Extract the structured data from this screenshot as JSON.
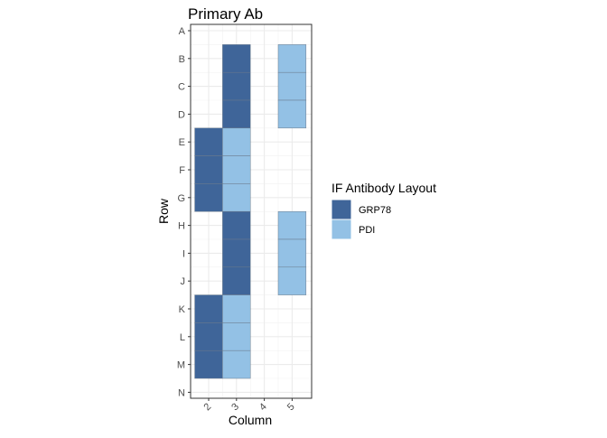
{
  "chart_data": {
    "type": "heatmap",
    "title": "Primary Ab",
    "xlabel": "Column",
    "ylabel": "Row",
    "columns": [
      "2",
      "3",
      "4",
      "5"
    ],
    "rows": [
      "A",
      "B",
      "C",
      "D",
      "E",
      "F",
      "G",
      "H",
      "I",
      "J",
      "K",
      "L",
      "M",
      "N"
    ],
    "legend": {
      "title": "IF Antibody Layout",
      "entries": [
        {
          "name": "GRP78",
          "color": "#3f6599"
        },
        {
          "name": "PDI",
          "color": "#93c1e5"
        }
      ]
    },
    "cells": [
      {
        "row": "B",
        "col": "3",
        "value": "GRP78"
      },
      {
        "row": "C",
        "col": "3",
        "value": "GRP78"
      },
      {
        "row": "D",
        "col": "3",
        "value": "GRP78"
      },
      {
        "row": "B",
        "col": "5",
        "value": "PDI"
      },
      {
        "row": "C",
        "col": "5",
        "value": "PDI"
      },
      {
        "row": "D",
        "col": "5",
        "value": "PDI"
      },
      {
        "row": "E",
        "col": "2",
        "value": "GRP78"
      },
      {
        "row": "F",
        "col": "2",
        "value": "GRP78"
      },
      {
        "row": "G",
        "col": "2",
        "value": "GRP78"
      },
      {
        "row": "E",
        "col": "3",
        "value": "PDI"
      },
      {
        "row": "F",
        "col": "3",
        "value": "PDI"
      },
      {
        "row": "G",
        "col": "3",
        "value": "PDI"
      },
      {
        "row": "H",
        "col": "3",
        "value": "GRP78"
      },
      {
        "row": "I",
        "col": "3",
        "value": "GRP78"
      },
      {
        "row": "J",
        "col": "3",
        "value": "GRP78"
      },
      {
        "row": "H",
        "col": "5",
        "value": "PDI"
      },
      {
        "row": "I",
        "col": "5",
        "value": "PDI"
      },
      {
        "row": "J",
        "col": "5",
        "value": "PDI"
      },
      {
        "row": "K",
        "col": "2",
        "value": "GRP78"
      },
      {
        "row": "L",
        "col": "2",
        "value": "GRP78"
      },
      {
        "row": "M",
        "col": "2",
        "value": "GRP78"
      },
      {
        "row": "K",
        "col": "3",
        "value": "PDI"
      },
      {
        "row": "L",
        "col": "3",
        "value": "PDI"
      },
      {
        "row": "M",
        "col": "3",
        "value": "PDI"
      }
    ],
    "grid": true,
    "legend_position": "right",
    "x_tick_rotation": "-45"
  }
}
